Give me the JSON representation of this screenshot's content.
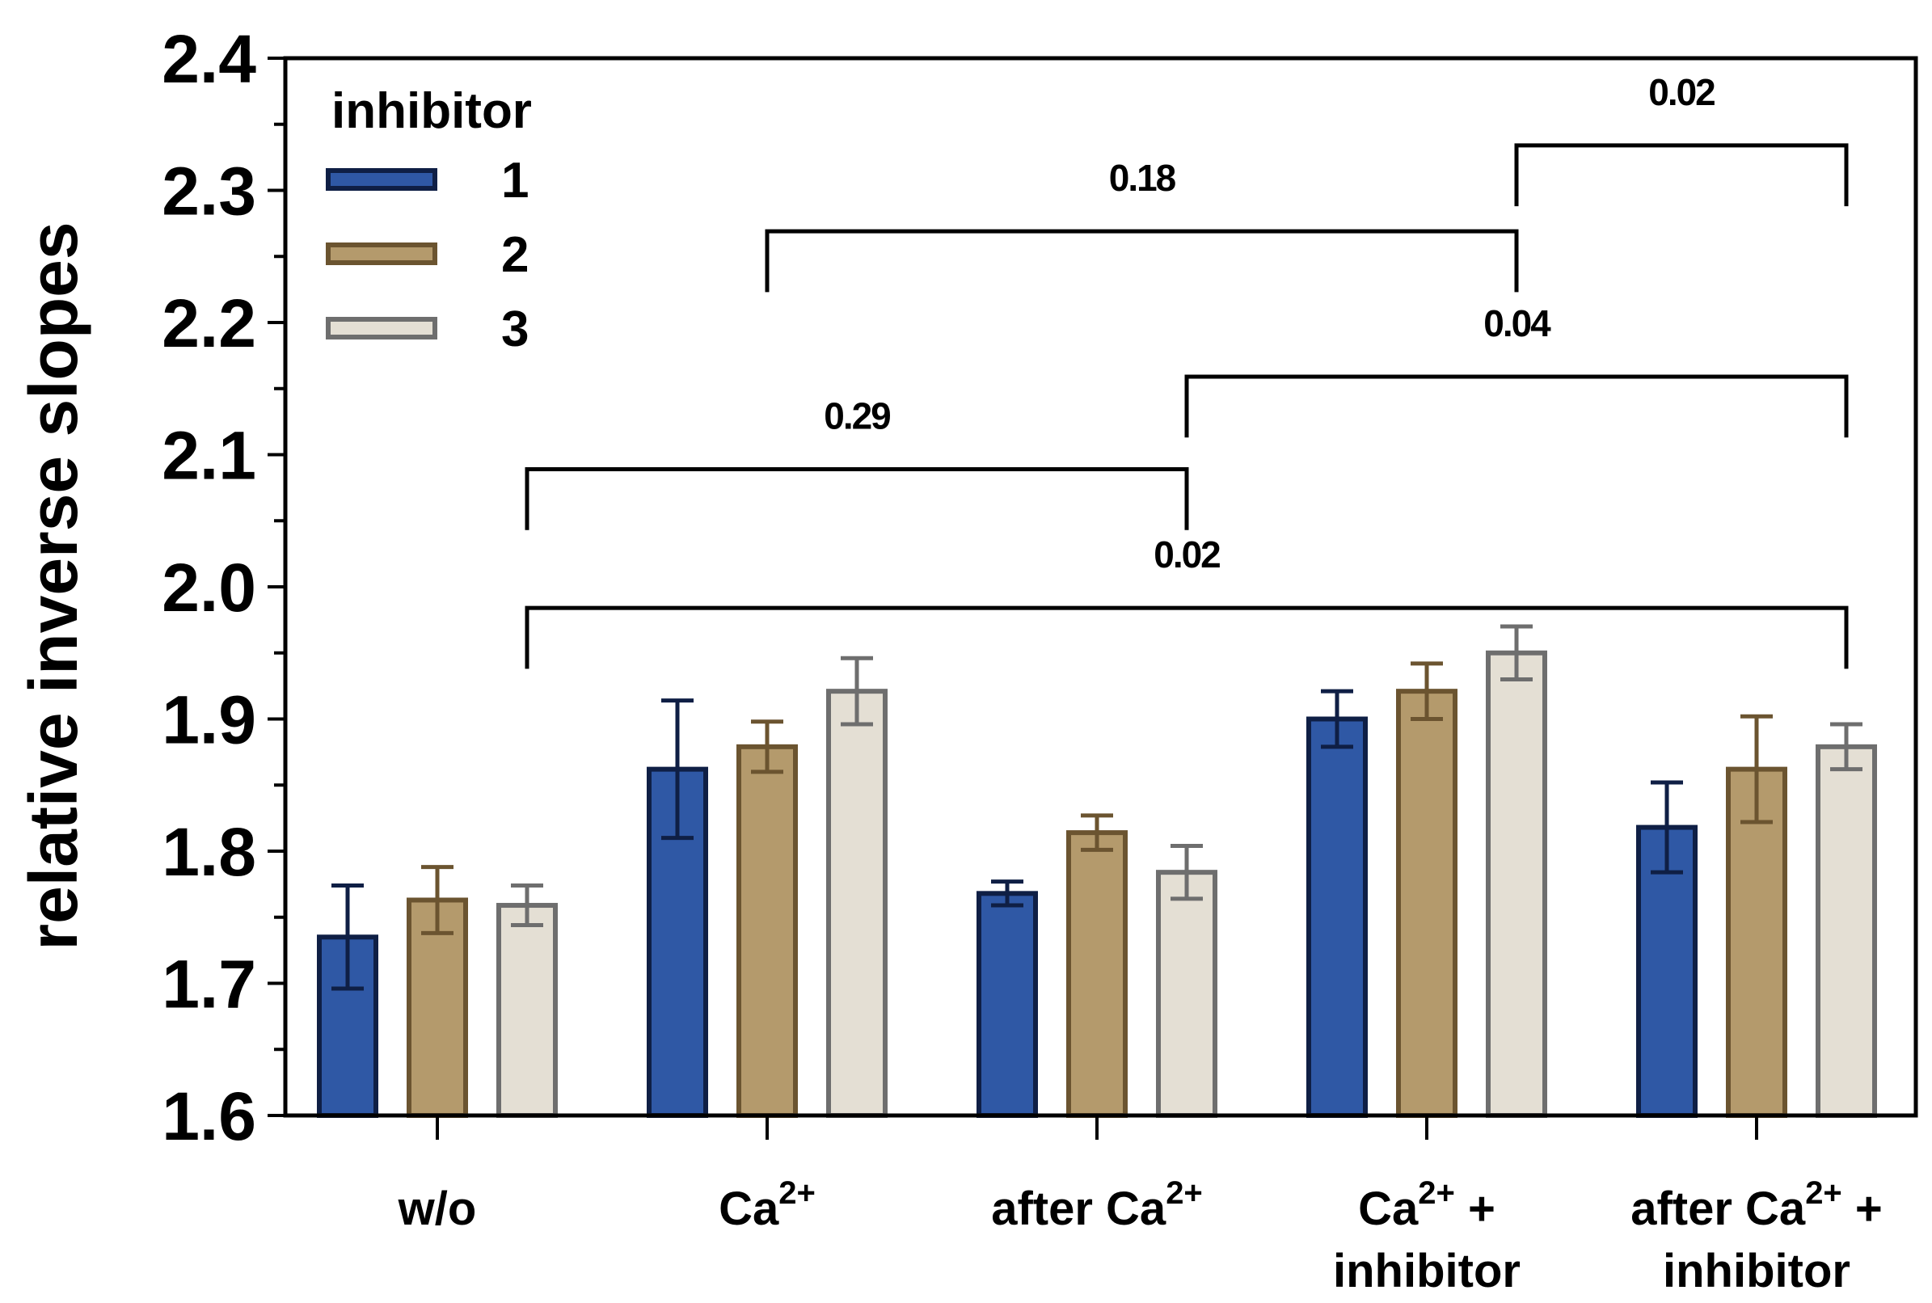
{
  "chart_data": {
    "type": "bar",
    "title": "",
    "xlabel": "",
    "ylabel": "relative inverse slopes",
    "ylim": [
      1.6,
      2.4
    ],
    "yticks": [
      "1.6",
      "1.7",
      "1.8",
      "1.9",
      "2.0",
      "2.1",
      "2.2",
      "2.3",
      "2.4"
    ],
    "grid": false,
    "categories": [
      {
        "line1": "w/o",
        "line1_sup": "",
        "line1_tail": "",
        "line2": ""
      },
      {
        "line1": "Ca",
        "line1_sup": "2+",
        "line1_tail": "",
        "line2": ""
      },
      {
        "line1": "after Ca",
        "line1_sup": "2+",
        "line1_tail": "",
        "line2": ""
      },
      {
        "line1": "Ca",
        "line1_sup": "2+",
        "line1_tail": " +",
        "line2": "inhibitor"
      },
      {
        "line1": "after Ca",
        "line1_sup": "2+",
        "line1_tail": " +",
        "line2": "inhibitor"
      }
    ],
    "legend": {
      "title": "inhibitor",
      "placement": "top-left"
    },
    "series": [
      {
        "name": "1",
        "fill": "#2f58a5",
        "stroke": "#0f1f45",
        "values": [
          1.735,
          1.862,
          1.768,
          1.9,
          1.818
        ],
        "errors": [
          0.039,
          0.052,
          0.009,
          0.021,
          0.034
        ]
      },
      {
        "name": "2",
        "fill": "#b49a6c",
        "stroke": "#6b5430",
        "values": [
          1.763,
          1.879,
          1.814,
          1.921,
          1.862
        ],
        "errors": [
          0.025,
          0.019,
          0.013,
          0.021,
          0.04
        ]
      },
      {
        "name": "3",
        "fill": "#e4dfd4",
        "stroke": "#6e6e6e",
        "values": [
          1.759,
          1.921,
          1.784,
          1.95,
          1.879
        ],
        "errors": [
          0.015,
          0.025,
          0.02,
          0.02,
          0.017
        ]
      }
    ],
    "brackets": [
      {
        "label": "0.02",
        "from_cat": 3,
        "from_series": 2,
        "to_cat": 4,
        "to_series": 2,
        "y": 2.334,
        "drop": 0.046
      },
      {
        "label": "0.18",
        "from_cat": 1,
        "from_series": 1,
        "to_cat": 3,
        "to_series": 2,
        "y": 2.269,
        "drop": 0.046
      },
      {
        "label": "0.04",
        "from_cat": 2,
        "from_series": 2,
        "to_cat": 4,
        "to_series": 2,
        "y": 2.159,
        "drop": 0.046
      },
      {
        "label": "0.29",
        "from_cat": 0,
        "from_series": 2,
        "to_cat": 2,
        "to_series": 2,
        "y": 2.089,
        "drop": 0.046
      },
      {
        "label": "0.02",
        "from_cat": 0,
        "from_series": 2,
        "to_cat": 4,
        "to_series": 2,
        "y": 1.984,
        "drop": 0.046
      }
    ]
  }
}
